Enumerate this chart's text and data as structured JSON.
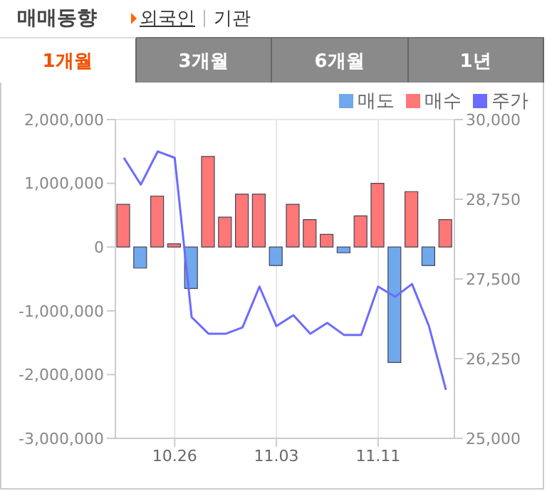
{
  "chart_data": {
    "type": "bar",
    "title": "매매동향",
    "annotations": [
      "외국인",
      "기관",
      "1개월",
      "3개월",
      "6개월",
      "1년"
    ],
    "categories": [
      null,
      null,
      null,
      "10.26",
      null,
      null,
      null,
      null,
      null,
      "11.03",
      null,
      null,
      null,
      null,
      null,
      "11.11",
      null,
      null,
      null,
      null
    ],
    "series": [
      {
        "name": "매도",
        "color": "#6fa8ec",
        "values": [
          null,
          -330000,
          null,
          null,
          -650000,
          null,
          null,
          null,
          null,
          -290000,
          null,
          null,
          null,
          -90000,
          null,
          null,
          -1810000,
          null,
          -290000,
          null
        ]
      },
      {
        "name": "매수",
        "color": "#ff7777",
        "values": [
          670000,
          null,
          800000,
          50000,
          null,
          1420000,
          470000,
          830000,
          830000,
          null,
          670000,
          430000,
          200000,
          null,
          490000,
          1000000,
          null,
          870000,
          null,
          430000
        ]
      },
      {
        "name": "주가",
        "type": "line",
        "axis": "y2",
        "color": "#6b6bff",
        "values": [
          29400,
          28980,
          29500,
          29400,
          26900,
          26640,
          26640,
          26740,
          27380,
          26760,
          26930,
          26640,
          26810,
          26620,
          26620,
          27380,
          27220,
          27420,
          26760,
          25760
        ]
      }
    ],
    "stacked": true,
    "ylim": [
      -3000000,
      2000000
    ],
    "yticks": [
      {
        "value": -3000000,
        "label": "-3,000,000"
      },
      {
        "value": -2000000,
        "label": "-2,000,000"
      },
      {
        "value": -1000000,
        "label": "-1,000,000"
      },
      0,
      {
        "value": 1000000,
        "label": "1,000,000"
      },
      {
        "value": 2000000,
        "label": "2,000,000"
      }
    ],
    "y2lim": [
      25000,
      30000
    ],
    "y2ticks": [
      {
        "value": 25000,
        "label": "25,000"
      },
      {
        "value": 26250,
        "label": "26,250"
      },
      {
        "value": 27500,
        "label": "27,500"
      },
      {
        "value": 28750,
        "label": "28,750"
      },
      {
        "value": 30000,
        "label": "30,000"
      }
    ],
    "grid": true,
    "legend": "top right",
    "marker": "none",
    "line_style": "solid"
  }
}
